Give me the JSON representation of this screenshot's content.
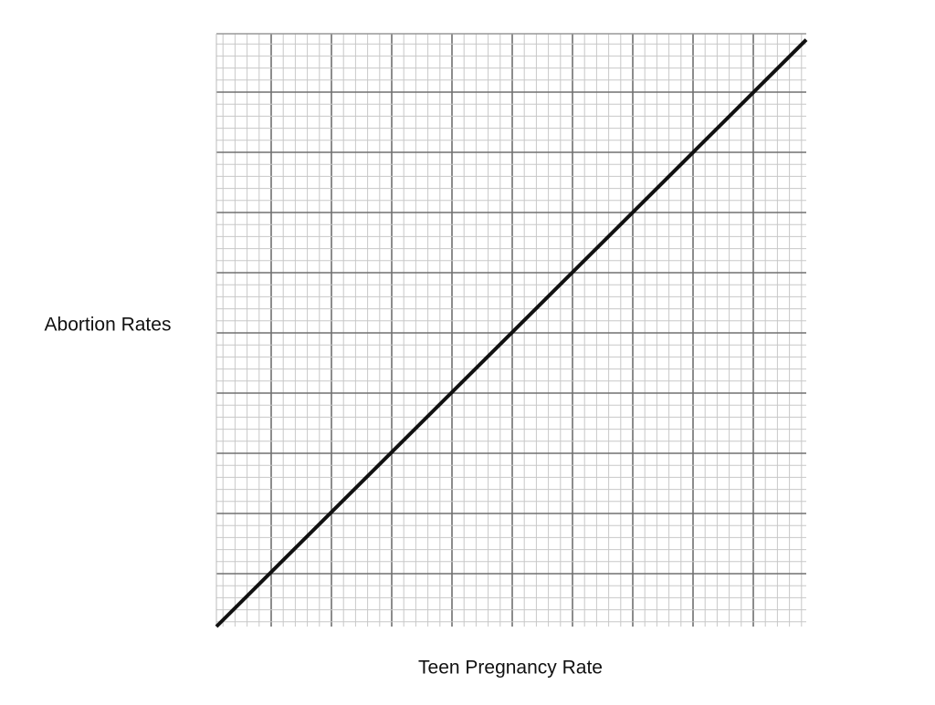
{
  "chart_data": {
    "type": "line",
    "x_label": "Teen Pregnancy Rate",
    "y_label": "Abortion Rates",
    "x": [
      0,
      9.8
    ],
    "values": [
      0,
      9.75
    ],
    "color": "#111111",
    "xlim": [
      0,
      9.8
    ],
    "ylim": [
      0,
      9.85
    ],
    "grid": true
  }
}
